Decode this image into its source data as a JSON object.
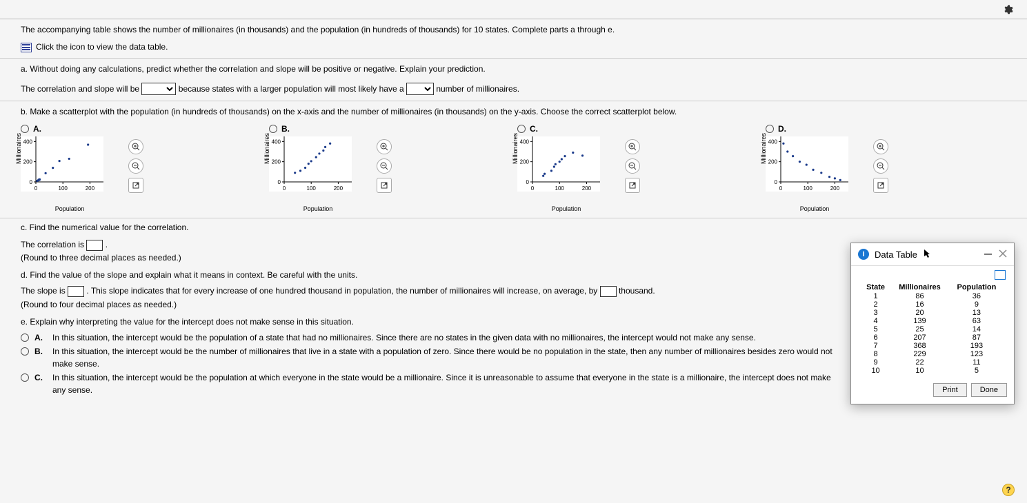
{
  "intro": {
    "text": "The accompanying table shows the number of millionaires (in thousands) and the population (in hundreds of thousands) for 10 states. Complete parts a through e.",
    "link_text": "Click the icon to view the data table."
  },
  "part_a": {
    "prompt": "a. Without doing any calculations, predict whether the correlation and slope will be positive or negative. Explain your prediction.",
    "sentence_1": "The correlation and slope will be",
    "sentence_2": "because states with a larger population will most likely have a",
    "sentence_3": "number of millionaires."
  },
  "part_b": {
    "prompt": "b. Make a scatterplot with the population (in hundreds of thousands) on the x-axis and the number of millionaires (in thousands) on the y-axis. Choose the correct scatterplot below.",
    "options": [
      "A.",
      "B.",
      "C.",
      "D."
    ],
    "chart": {
      "type": "scatter",
      "xlabel": "Population",
      "ylabel": "Millionaires",
      "xlim": [
        0,
        250
      ],
      "xticks": [
        0,
        100,
        200
      ],
      "xtick_labels": [
        "0",
        "100",
        "200"
      ],
      "ylim": [
        0,
        450
      ],
      "yticks": [
        0,
        200,
        400
      ],
      "ytick_labels": [
        "0",
        "200",
        "400"
      ],
      "axis_color": "#000000",
      "point_color": "#1a3a8a",
      "point_radius": 1.6,
      "background": "#ffffff",
      "label_fontsize": 9,
      "tick_fontsize": 8,
      "width": 120,
      "height": 80,
      "series": {
        "A": [
          [
            36,
            86
          ],
          [
            9,
            16
          ],
          [
            13,
            20
          ],
          [
            63,
            139
          ],
          [
            14,
            25
          ],
          [
            87,
            207
          ],
          [
            193,
            368
          ],
          [
            123,
            229
          ],
          [
            11,
            22
          ],
          [
            5,
            10
          ]
        ],
        "B": [
          [
            40,
            90
          ],
          [
            60,
            110
          ],
          [
            78,
            140
          ],
          [
            90,
            180
          ],
          [
            100,
            205
          ],
          [
            118,
            245
          ],
          [
            130,
            280
          ],
          [
            145,
            310
          ],
          [
            152,
            345
          ],
          [
            170,
            380
          ]
        ],
        "C": [
          [
            40,
            60
          ],
          [
            45,
            80
          ],
          [
            70,
            110
          ],
          [
            80,
            150
          ],
          [
            85,
            175
          ],
          [
            100,
            200
          ],
          [
            108,
            225
          ],
          [
            120,
            255
          ],
          [
            150,
            290
          ],
          [
            185,
            260
          ]
        ],
        "D": [
          [
            10,
            380
          ],
          [
            25,
            300
          ],
          [
            45,
            255
          ],
          [
            70,
            200
          ],
          [
            95,
            170
          ],
          [
            120,
            120
          ],
          [
            150,
            90
          ],
          [
            180,
            50
          ],
          [
            200,
            35
          ],
          [
            220,
            18
          ]
        ]
      }
    }
  },
  "part_c": {
    "prompt": "c. Find the numerical value for the correlation.",
    "line1_a": "The correlation is",
    "line1_b": ".",
    "note": "(Round to three decimal places as needed.)"
  },
  "part_d": {
    "prompt": "d. Find the value of the slope and explain what it means in context. Be careful with the units.",
    "line1_a": "The slope is",
    "line1_b": ". This slope indicates that for every increase of one hundred thousand in population, the number of millionaires will increase, on average, by",
    "line1_c": "thousand.",
    "note": "(Round to four decimal places as needed.)"
  },
  "part_e": {
    "prompt": "e. Explain why interpreting the value for the intercept does not make sense in this situation.",
    "choices": [
      {
        "label": "A.",
        "text": "In this situation, the intercept would be the population of a state that had no millionaires. Since there are no states in the given data with no millionaires, the intercept would not make any sense."
      },
      {
        "label": "B.",
        "text": "In this situation, the intercept would be the number of millionaires that live in a state with a population of zero. Since there would be no population in the state, then any number of millionaires besides zero would not make sense."
      },
      {
        "label": "C.",
        "text": "In this situation, the intercept would be the population at which everyone in the state would be a millionaire. Since it is unreasonable to assume that everyone in the state is a millionaire, the intercept does not make any sense."
      }
    ]
  },
  "dialog": {
    "title": "Data Table",
    "columns": [
      "State",
      "Millionaires",
      "Population"
    ],
    "rows": [
      [
        "1",
        "86",
        "36"
      ],
      [
        "2",
        "16",
        "9"
      ],
      [
        "3",
        "20",
        "13"
      ],
      [
        "4",
        "139",
        "63"
      ],
      [
        "5",
        "25",
        "14"
      ],
      [
        "6",
        "207",
        "87"
      ],
      [
        "7",
        "368",
        "193"
      ],
      [
        "8",
        "229",
        "123"
      ],
      [
        "9",
        "22",
        "11"
      ],
      [
        "10",
        "10",
        "5"
      ]
    ],
    "print": "Print",
    "done": "Done"
  },
  "help": "?"
}
